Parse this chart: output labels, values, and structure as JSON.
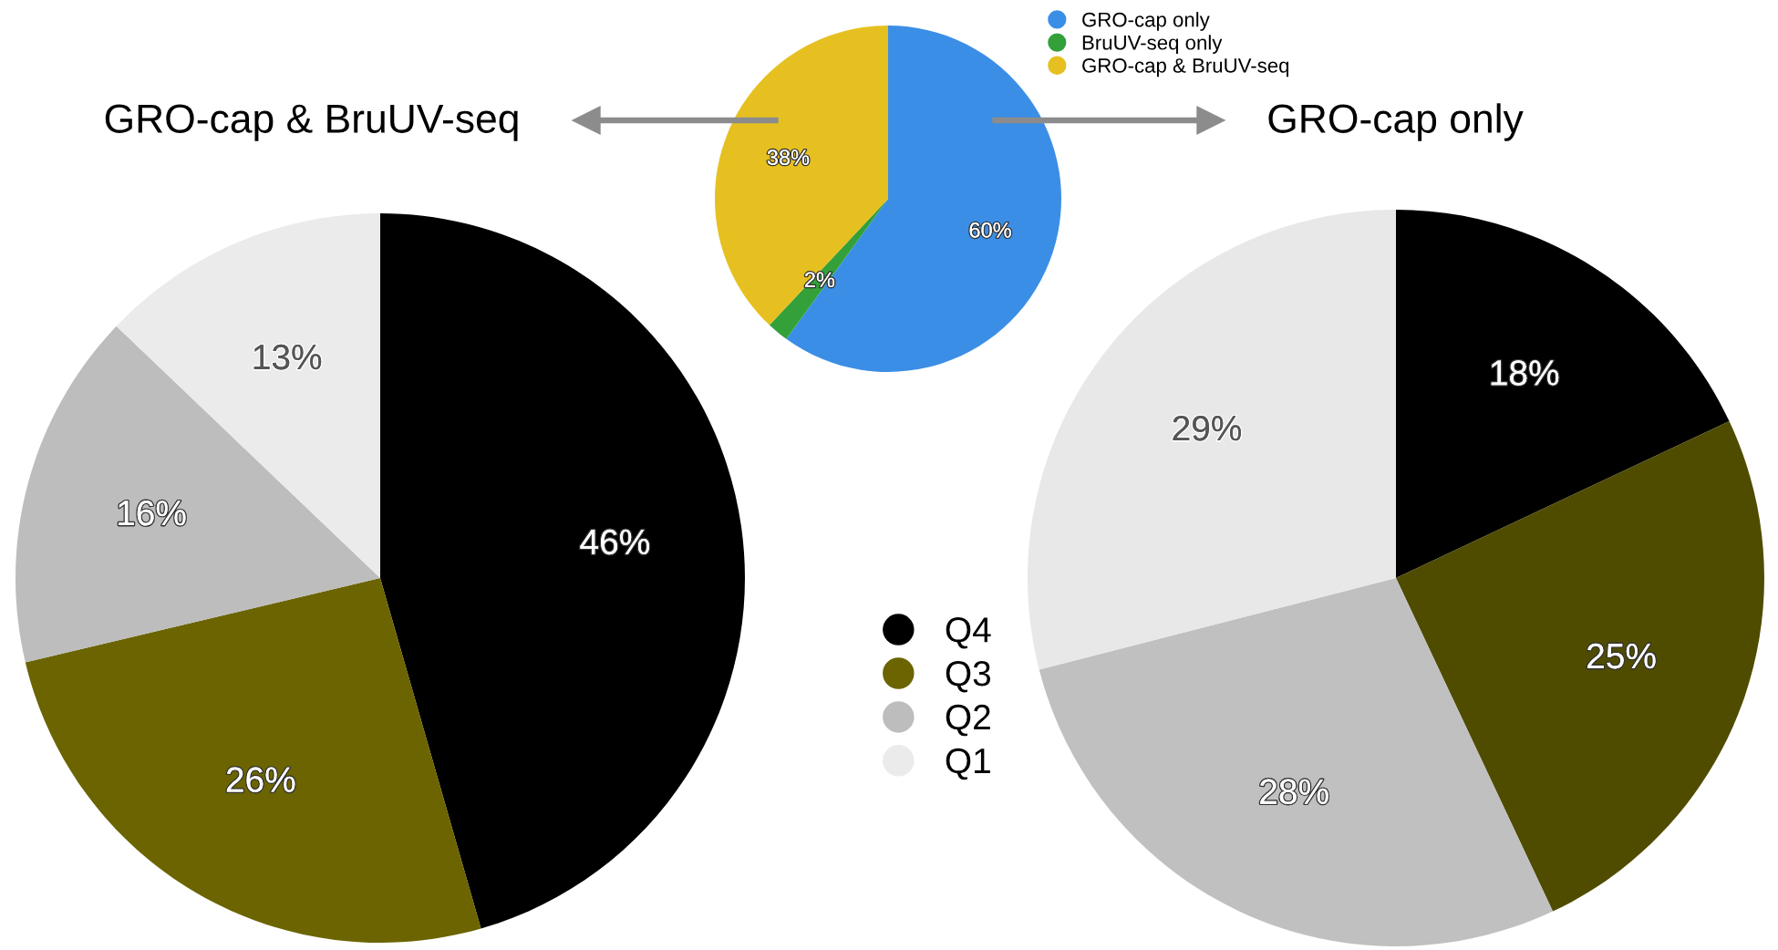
{
  "chart_data": [
    {
      "type": "pie",
      "categories": [
        "GRO-cap only",
        "BruUV-seq only",
        "GRO-cap & BruUV-seq"
      ],
      "values": [
        60,
        2,
        38
      ],
      "colors": [
        "#3b8ee6",
        "#33a03a",
        "#e6c020"
      ],
      "value_labels": [
        "60%",
        "2%",
        "38%"
      ],
      "legend": "top right"
    },
    {
      "type": "pie",
      "title": "GRO-cap & BruUV-seq",
      "categories": [
        "Q4",
        "Q3",
        "Q2",
        "Q1"
      ],
      "values": [
        46,
        26,
        16,
        13
      ],
      "colors": [
        "#000000",
        "#6b6400",
        "#bdbdbd",
        "#ebebeb"
      ],
      "value_labels": [
        "46%",
        "26%",
        "16%",
        "13%"
      ],
      "legend": "right"
    },
    {
      "type": "pie",
      "title": "GRO-cap only",
      "categories": [
        null,
        null,
        null,
        null
      ],
      "values": [
        18,
        25,
        28,
        29
      ],
      "colors": [
        "#000000",
        "#4f4c00",
        "#c0c0c0",
        "#e8e8e8"
      ],
      "value_labels": [
        "18%",
        "25%",
        "28%",
        "29%"
      ]
    }
  ]
}
